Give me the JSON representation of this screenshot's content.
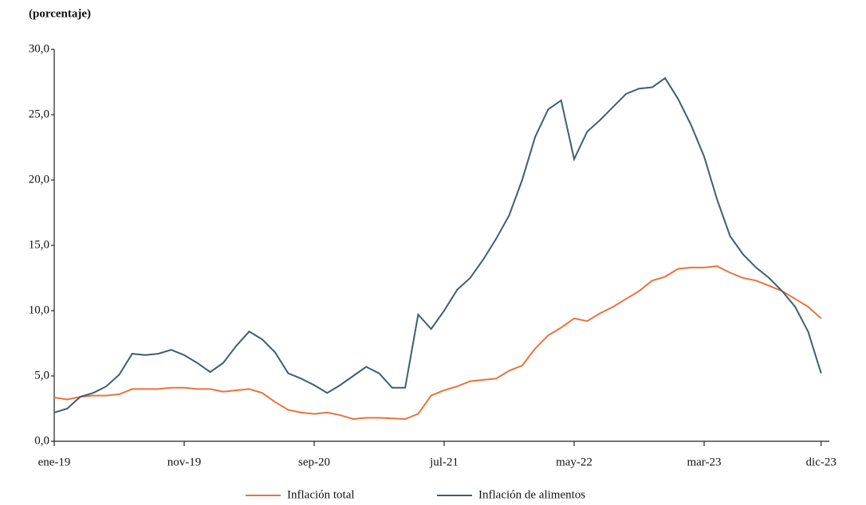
{
  "chart_data": {
    "type": "line",
    "title": "(porcentaje)",
    "categories": [
      "ene-19",
      null,
      null,
      null,
      null,
      null,
      null,
      null,
      null,
      null,
      "nov-19",
      null,
      null,
      null,
      null,
      null,
      null,
      null,
      null,
      null,
      "sep-20",
      null,
      null,
      null,
      null,
      null,
      null,
      null,
      null,
      null,
      "jul-21",
      null,
      null,
      null,
      null,
      null,
      null,
      null,
      null,
      null,
      "may-22",
      null,
      null,
      null,
      null,
      null,
      null,
      null,
      null,
      null,
      "mar-23",
      null,
      null,
      null,
      null,
      null,
      null,
      null,
      null,
      "dic-23"
    ],
    "series": [
      {
        "name": "Inflación total",
        "color": "#e8743b",
        "values": [
          3.35,
          3.2,
          3.4,
          3.5,
          3.5,
          3.6,
          4.0,
          4.0,
          4.0,
          4.1,
          4.1,
          4.0,
          4.0,
          3.8,
          3.9,
          4.0,
          3.7,
          3.0,
          2.4,
          2.2,
          2.1,
          2.2,
          2.0,
          1.7,
          1.8,
          1.8,
          1.75,
          1.7,
          2.1,
          3.5,
          3.9,
          4.2,
          4.6,
          4.7,
          4.8,
          5.4,
          5.8,
          7.1,
          8.1,
          8.7,
          9.4,
          9.2,
          9.8,
          10.3,
          10.9,
          11.5,
          12.3,
          12.6,
          13.2,
          13.3,
          13.3,
          13.4,
          12.9,
          12.5,
          12.3,
          11.9,
          11.5,
          10.9,
          10.3,
          9.4
        ]
      },
      {
        "name": "Inflación de alimentos",
        "color": "#3d5f73",
        "values": [
          2.2,
          2.5,
          3.4,
          3.7,
          4.2,
          5.1,
          6.7,
          6.6,
          6.7,
          7.0,
          6.6,
          6.0,
          5.3,
          6.0,
          7.3,
          8.4,
          7.8,
          6.8,
          5.2,
          4.8,
          4.3,
          3.7,
          4.3,
          5.0,
          5.7,
          5.2,
          4.1,
          4.1,
          9.7,
          8.6,
          10.0,
          11.6,
          12.5,
          13.9,
          15.5,
          17.3,
          20.0,
          23.3,
          25.4,
          26.1,
          21.6,
          23.7,
          24.6,
          25.6,
          26.6,
          27.0,
          27.1,
          27.8,
          26.2,
          24.2,
          21.8,
          18.5,
          15.7,
          14.3,
          13.3,
          12.5,
          11.5,
          10.3,
          8.4,
          5.2
        ]
      }
    ],
    "ylim": [
      0,
      30
    ],
    "yticks": [
      {
        "value": 0,
        "label": "0,0"
      },
      {
        "value": 5,
        "label": "5,0"
      },
      {
        "value": 10,
        "label": "10,0"
      },
      {
        "value": 15,
        "label": "15,0"
      },
      {
        "value": 20,
        "label": "20,0"
      },
      {
        "value": 25,
        "label": "25,0"
      },
      {
        "value": 30,
        "label": "30,0"
      }
    ],
    "grid": false,
    "legend": "bottom"
  }
}
